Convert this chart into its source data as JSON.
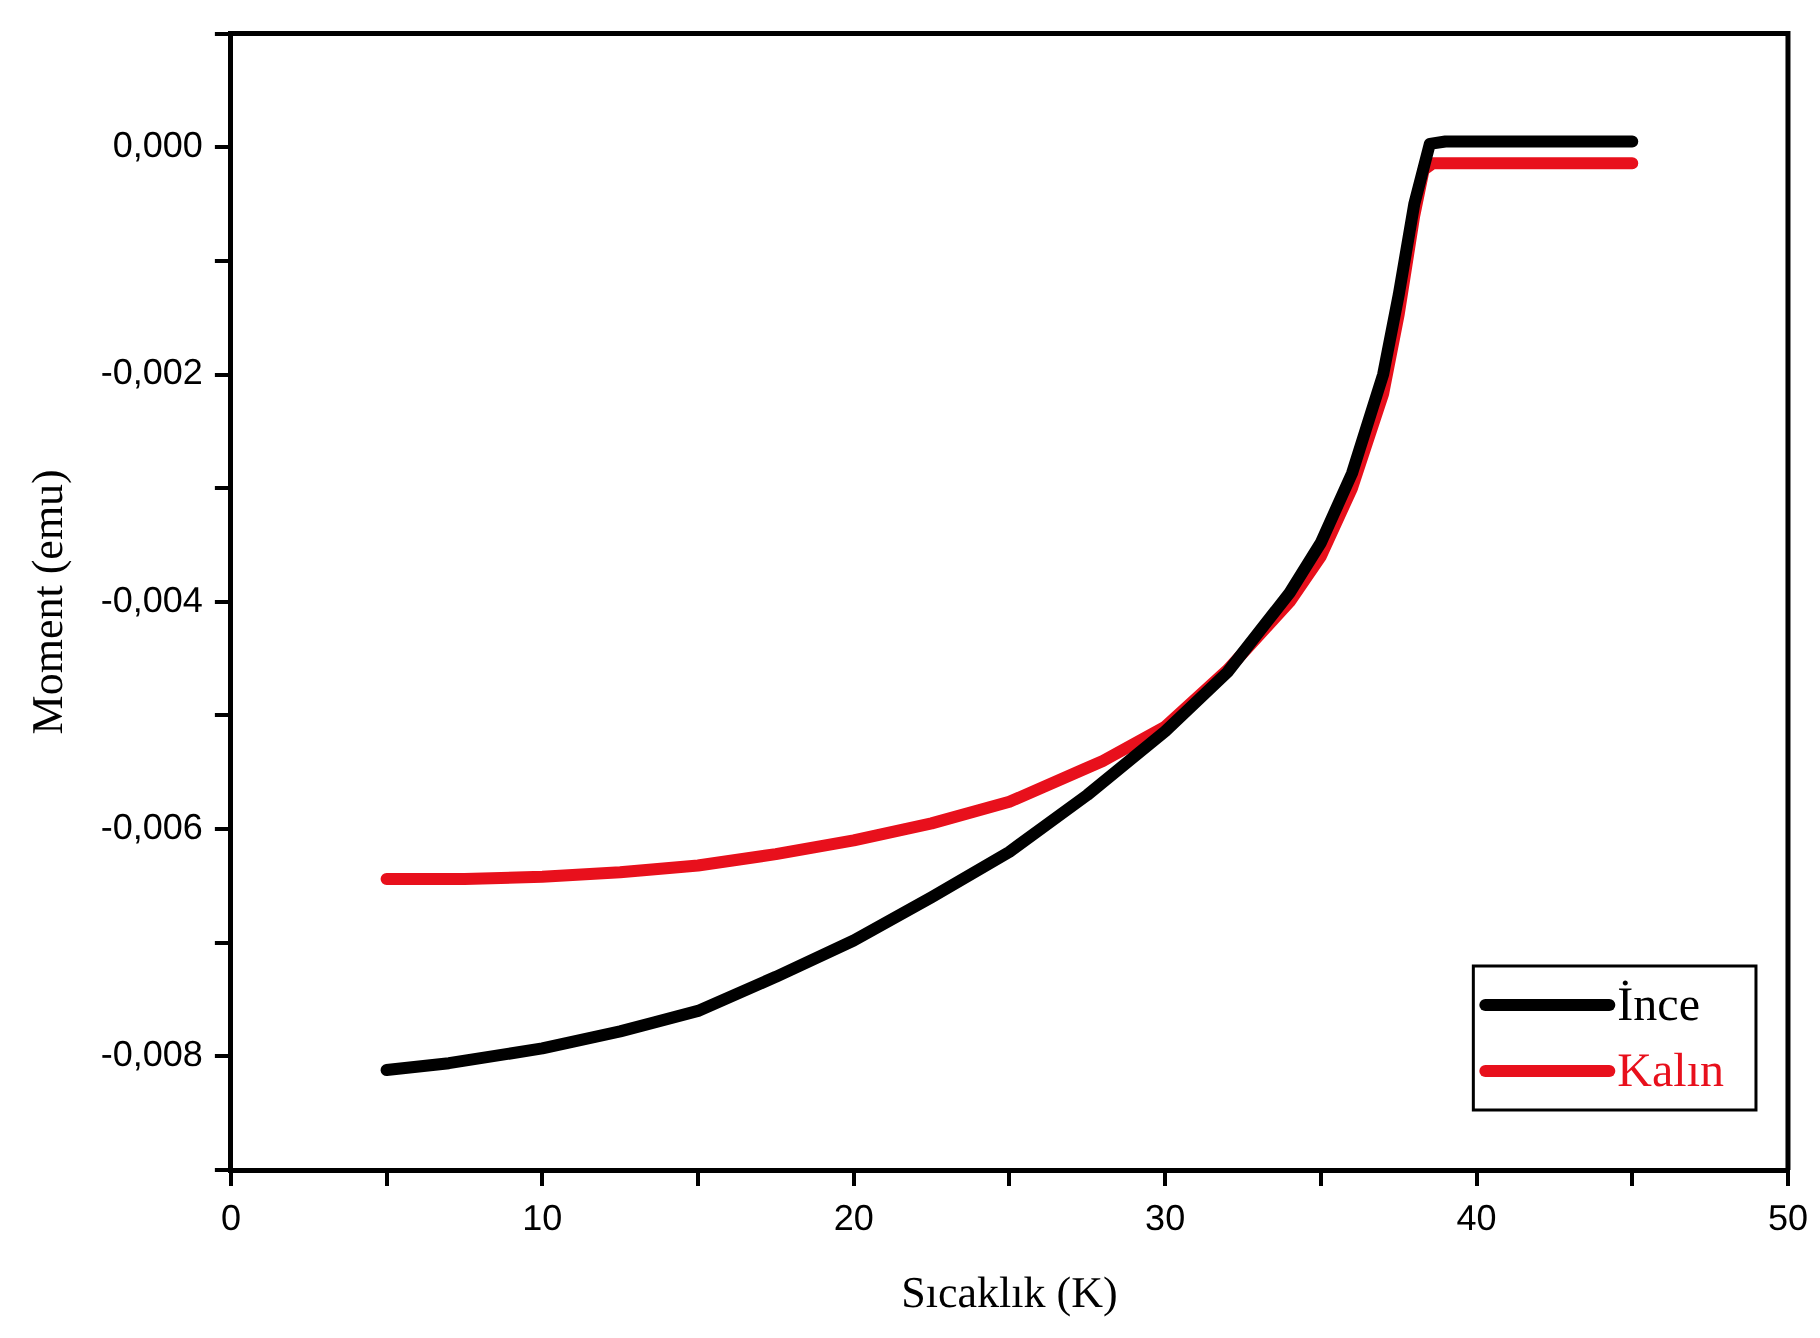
{
  "chart_data": {
    "type": "line",
    "xlabel": "Sıcaklık (K)",
    "ylabel": "Moment (emu)",
    "xlim": [
      0,
      50
    ],
    "ylim": [
      -0.009,
      0.001
    ],
    "xticks": [
      0,
      {
        "value": 5,
        "label": null
      },
      10,
      {
        "value": 15,
        "label": null
      },
      20,
      {
        "value": 25,
        "label": null
      },
      30,
      {
        "value": 35,
        "label": null
      },
      40,
      {
        "value": 45,
        "label": null
      },
      50
    ],
    "yticks": [
      {
        "value": -0.009,
        "label": null
      },
      {
        "value": -0.008,
        "label": "-0,008"
      },
      {
        "value": -0.007,
        "label": null
      },
      {
        "value": -0.006,
        "label": "-0,006"
      },
      {
        "value": -0.005,
        "label": null
      },
      {
        "value": -0.004,
        "label": "-0,004"
      },
      {
        "value": -0.003,
        "label": null
      },
      {
        "value": -0.002,
        "label": "-0,002"
      },
      {
        "value": -0.001,
        "label": null
      },
      {
        "value": 0,
        "label": "0,000"
      },
      {
        "value": 0.001,
        "label": null
      }
    ],
    "grid": false,
    "legend": "bottom right",
    "marker": "none",
    "line_style": "solid",
    "series": [
      {
        "name": "İnce",
        "color": "#000000",
        "x": [
          5,
          7,
          10,
          12.5,
          15,
          17.5,
          20,
          22.5,
          25,
          27.5,
          30,
          32,
          34,
          35,
          36,
          37,
          37.5,
          38,
          38.5,
          39,
          42,
          45
        ],
        "values": [
          -0.00812,
          -0.00806,
          -0.00793,
          -0.00778,
          -0.0076,
          -0.0073,
          -0.00698,
          -0.0066,
          -0.0062,
          -0.0057,
          -0.00514,
          -0.00462,
          -0.00392,
          -0.00348,
          -0.00287,
          -0.002,
          -0.0013,
          -0.0005,
          3e-05,
          5e-05,
          5e-05,
          5e-05
        ]
      },
      {
        "name": "Kalın",
        "color": "#e8101c",
        "x": [
          5,
          7.5,
          10,
          12.5,
          15,
          17.5,
          20,
          22.5,
          25,
          28,
          30,
          32,
          34,
          35,
          36,
          37,
          37.5,
          38,
          38.3,
          38.6,
          42,
          45
        ],
        "values": [
          -0.00644,
          -0.00644,
          -0.00642,
          -0.00638,
          -0.00632,
          -0.00622,
          -0.0061,
          -0.00595,
          -0.00576,
          -0.0054,
          -0.0051,
          -0.0046,
          -0.004,
          -0.0036,
          -0.003,
          -0.00217,
          -0.00147,
          -0.0006,
          -0.0002,
          -0.00014,
          -0.00014,
          -0.00014
        ]
      }
    ]
  }
}
